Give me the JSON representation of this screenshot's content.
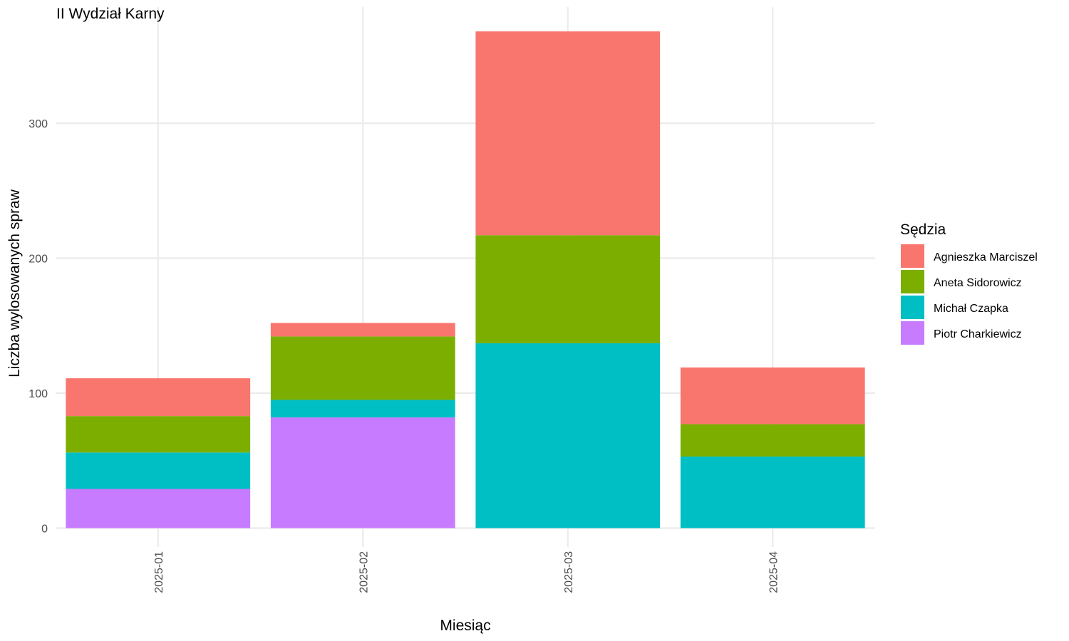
{
  "chart_data": {
    "type": "bar",
    "stacked": true,
    "title": "II Wydział Karny",
    "xlabel": "Miesiąc",
    "ylabel": "Liczba wylosowanych spraw",
    "categories": [
      "2025-01",
      "2025-02",
      "2025-03",
      "2025-04"
    ],
    "y_ticks": [
      0,
      100,
      200,
      300
    ],
    "ylim": [
      -14,
      386
    ],
    "grid": true,
    "legend": {
      "title": "Sędzia",
      "position": "right"
    },
    "series": [
      {
        "name": "Piotr Charkiewicz",
        "color": "#C77CFF",
        "values": [
          29,
          82,
          0,
          0
        ]
      },
      {
        "name": "Michał Czapka",
        "color": "#00BFC4",
        "values": [
          27,
          13,
          137,
          53
        ]
      },
      {
        "name": "Aneta Sidorowicz",
        "color": "#7CAE00",
        "values": [
          27,
          47,
          80,
          24
        ]
      },
      {
        "name": "Agnieszka Marciszel",
        "color": "#F8766D",
        "values": [
          28,
          10,
          151,
          42
        ]
      }
    ],
    "legend_order": [
      "Agnieszka Marciszel",
      "Aneta Sidorowicz",
      "Michał Czapka",
      "Piotr Charkiewicz"
    ]
  }
}
